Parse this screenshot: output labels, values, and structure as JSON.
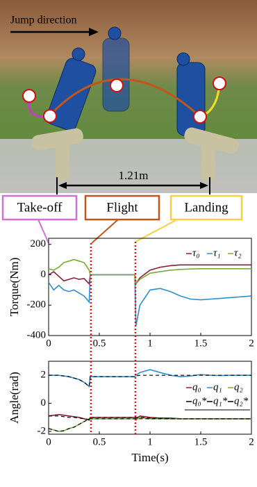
{
  "photo": {
    "direction": "Jump direction",
    "distance": "1.21m"
  },
  "phases": [
    "Take-off",
    "Flight",
    "Landing"
  ],
  "chart_data": [
    {
      "type": "line",
      "ylabel": "Torque(Nm)",
      "legend": "upper right",
      "x": [
        0,
        0.05,
        0.1,
        0.15,
        0.2,
        0.25,
        0.3,
        0.35,
        0.4,
        0.41,
        0.5,
        0.6,
        0.7,
        0.8,
        0.85,
        0.86,
        0.9,
        1.0,
        1.1,
        1.2,
        1.3,
        1.4,
        1.5,
        1.6,
        1.7,
        1.8,
        1.9,
        2.0
      ],
      "xlim": [
        0,
        2
      ],
      "xticks": [
        0,
        0.5,
        1,
        1.5,
        2
      ],
      "ylim": [
        -400,
        240
      ],
      "yticks": [
        200,
        0,
        -200,
        -400
      ],
      "series": [
        {
          "name": "τ₀",
          "color": "#8b1a3a",
          "values": [
            0,
            20,
            -10,
            -40,
            -30,
            -20,
            -30,
            -25,
            -60,
            0,
            0,
            0,
            0,
            0,
            0,
            -60,
            -20,
            30,
            50,
            60,
            65,
            65,
            65,
            65,
            65,
            65,
            65,
            65
          ]
        },
        {
          "name": "τ₁",
          "color": "#2a8fd0",
          "values": [
            -50,
            -100,
            -70,
            -100,
            -110,
            -100,
            -120,
            -140,
            -180,
            0,
            0,
            0,
            0,
            0,
            0,
            -340,
            -200,
            -100,
            -90,
            -110,
            -140,
            -160,
            -165,
            -160,
            -155,
            -150,
            -145,
            -140
          ]
        },
        {
          "name": "τ₂",
          "color": "#77ac30",
          "values": [
            40,
            30,
            50,
            80,
            90,
            100,
            90,
            80,
            30,
            0,
            0,
            0,
            0,
            0,
            0,
            -60,
            -30,
            10,
            20,
            30,
            35,
            38,
            40,
            40,
            40,
            40,
            40,
            40
          ]
        }
      ]
    },
    {
      "type": "line",
      "ylabel": "Angle(rad)",
      "xlabel": "Time(s)",
      "legend": "upper right",
      "x": [
        0,
        0.05,
        0.1,
        0.15,
        0.2,
        0.25,
        0.3,
        0.35,
        0.4,
        0.41,
        0.5,
        0.6,
        0.7,
        0.8,
        0.85,
        0.86,
        0.9,
        1.0,
        1.1,
        1.2,
        1.3,
        1.4,
        1.5,
        1.6,
        1.7,
        1.8,
        1.9,
        2.0
      ],
      "xlim": [
        0,
        2
      ],
      "xticks": [
        0,
        0.5,
        1,
        1.5,
        2
      ],
      "ylim": [
        -2.2,
        3
      ],
      "yticks": [
        2,
        0,
        -2
      ],
      "series": [
        {
          "name": "q₀",
          "color": "#8b1a3a",
          "values": [
            -0.9,
            -0.85,
            -0.8,
            -0.85,
            -0.9,
            -0.95,
            -1.0,
            -1.1,
            -1.2,
            -1.0,
            -1.0,
            -1.0,
            -1.0,
            -1.0,
            -1.0,
            -1.1,
            -0.9,
            -1.0,
            -1.05,
            -1.05,
            -1.1,
            -1.1,
            -1.1,
            -1.1,
            -1.1,
            -1.1,
            -1.1,
            -1.1
          ]
        },
        {
          "name": "q₁",
          "color": "#2a8fd0",
          "values": [
            2.0,
            2.0,
            2.0,
            1.95,
            1.9,
            1.8,
            1.7,
            1.5,
            1.2,
            1.9,
            1.9,
            1.9,
            1.9,
            1.9,
            1.9,
            2.0,
            2.2,
            2.4,
            2.2,
            2.0,
            1.9,
            1.95,
            2.05,
            2.0,
            1.98,
            2.0,
            2.0,
            2.0
          ]
        },
        {
          "name": "q₂",
          "color": "#77ac30",
          "values": [
            -1.8,
            -1.9,
            -2.0,
            -1.95,
            -1.8,
            -1.7,
            -1.5,
            -1.3,
            -1.1,
            -1.1,
            -1.1,
            -1.1,
            -1.1,
            -1.1,
            -1.1,
            -1.2,
            -1.0,
            -1.1,
            -1.1,
            -1.1,
            -1.1,
            -1.1,
            -1.1,
            -1.1,
            -1.1,
            -1.1,
            -1.1,
            -1.1
          ]
        },
        {
          "name": "q₀*",
          "color": "#000000",
          "dashed": true,
          "values": [
            -0.9,
            -0.9,
            -0.9,
            -0.95,
            -1.0,
            -1.0,
            -1.05,
            -1.1,
            -1.15,
            -1.0,
            -1.0,
            -1.0,
            -1.0,
            -1.0,
            -1.0,
            -1.0,
            -1.0,
            -1.05,
            -1.05,
            -1.1,
            -1.1,
            -1.1,
            -1.1,
            -1.1,
            -1.1,
            -1.1,
            -1.1,
            -1.1
          ]
        },
        {
          "name": "q₁*",
          "color": "#000000",
          "dashed": true,
          "values": [
            2.0,
            2.0,
            2.0,
            1.95,
            1.9,
            1.8,
            1.7,
            1.5,
            1.2,
            1.9,
            1.9,
            1.9,
            1.9,
            1.9,
            1.9,
            1.95,
            2.0,
            2.0,
            2.0,
            2.0,
            2.0,
            2.0,
            2.0,
            2.0,
            2.0,
            2.0,
            2.0,
            2.0
          ]
        },
        {
          "name": "q₂*",
          "color": "#000000",
          "dashed": true,
          "values": [
            -1.8,
            -1.9,
            -2.0,
            -1.95,
            -1.8,
            -1.7,
            -1.5,
            -1.3,
            -1.1,
            -1.1,
            -1.1,
            -1.1,
            -1.1,
            -1.1,
            -1.1,
            -1.1,
            -1.1,
            -1.1,
            -1.1,
            -1.1,
            -1.1,
            -1.1,
            -1.1,
            -1.1,
            -1.1,
            -1.1,
            -1.1,
            -1.1
          ]
        }
      ]
    }
  ]
}
